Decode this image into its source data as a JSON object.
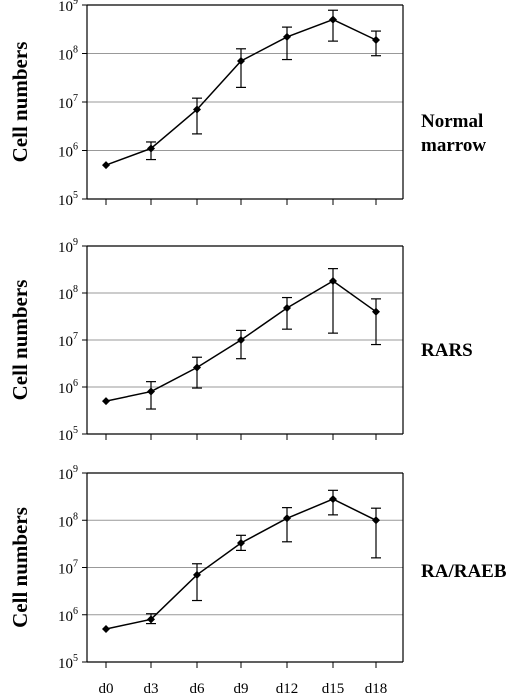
{
  "chart_data": {
    "type": "line",
    "scale": "log",
    "ylim": [
      100000,
      1000000000
    ],
    "y_tick_labels": [
      {
        "base": "10",
        "exp": "5"
      },
      {
        "base": "10",
        "exp": "6"
      },
      {
        "base": "10",
        "exp": "7"
      },
      {
        "base": "10",
        "exp": "8"
      },
      {
        "base": "10",
        "exp": "9"
      }
    ],
    "categories": [
      "d0",
      "d3",
      "d6",
      "d9",
      "d12",
      "d15",
      "d18"
    ],
    "ylabel": "Cell numbers",
    "grid": true,
    "colors": {
      "line": "#000000",
      "grid": "#999999",
      "axis": "#000000"
    },
    "panels": [
      {
        "label_lines": [
          "Normal",
          "marrow"
        ],
        "values": [
          500000,
          1100000,
          7000000,
          70000000,
          220000000,
          500000000,
          190000000
        ],
        "err_low": [
          500000,
          650000,
          2200000,
          20000000,
          75000000,
          180000000,
          90000000
        ],
        "err_high": [
          500000,
          1500000,
          12000000,
          125000000,
          350000000,
          780000000,
          290000000
        ]
      },
      {
        "label_lines": [
          "RARS"
        ],
        "values": [
          500000,
          800000,
          2600000,
          10000000,
          48000000,
          180000000,
          40000000
        ],
        "err_low": [
          500000,
          340000,
          950000,
          4000000,
          17000000,
          14000000,
          8000000
        ],
        "err_high": [
          500000,
          1300000,
          4300000,
          16000000,
          80000000,
          330000000,
          75000000
        ]
      },
      {
        "label_lines": [
          "RA/RAEB"
        ],
        "values": [
          500000,
          800000,
          7000000,
          33000000,
          110000000,
          280000000,
          100000000
        ],
        "err_low": [
          500000,
          650000,
          2000000,
          23000000,
          35000000,
          130000000,
          16000000
        ],
        "err_high": [
          500000,
          1050000,
          12000000,
          48000000,
          185000000,
          430000000,
          180000000
        ]
      }
    ]
  }
}
